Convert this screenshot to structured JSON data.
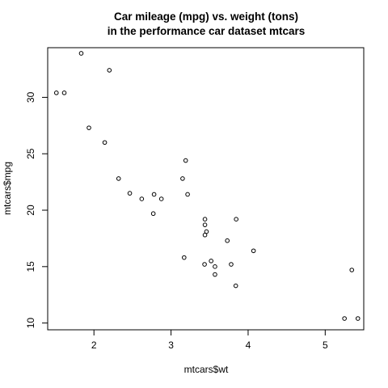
{
  "chart_data": {
    "type": "scatter",
    "title": "Car mileage (mpg) vs. weight (tons)",
    "subtitle": "in the performance car dataset mtcars",
    "xlabel": "mtcars$wt",
    "ylabel": "mtcars$mpg",
    "xlim": [
      1.4,
      5.5
    ],
    "ylim": [
      9.4,
      34.4
    ],
    "x_ticks": [
      2,
      3,
      4,
      5
    ],
    "y_ticks": [
      10,
      15,
      20,
      25,
      30
    ],
    "grid": false,
    "legend": "none",
    "marker": "open-circle",
    "point_color": "#000000",
    "points": [
      {
        "x": 2.62,
        "y": 21.0
      },
      {
        "x": 2.875,
        "y": 21.0
      },
      {
        "x": 2.32,
        "y": 22.8
      },
      {
        "x": 3.215,
        "y": 21.4
      },
      {
        "x": 3.44,
        "y": 18.7
      },
      {
        "x": 3.46,
        "y": 18.1
      },
      {
        "x": 3.57,
        "y": 14.3
      },
      {
        "x": 3.19,
        "y": 24.4
      },
      {
        "x": 3.15,
        "y": 22.8
      },
      {
        "x": 3.44,
        "y": 19.2
      },
      {
        "x": 3.44,
        "y": 17.8
      },
      {
        "x": 4.07,
        "y": 16.4
      },
      {
        "x": 3.73,
        "y": 17.3
      },
      {
        "x": 3.78,
        "y": 15.2
      },
      {
        "x": 5.25,
        "y": 10.4
      },
      {
        "x": 5.424,
        "y": 10.4
      },
      {
        "x": 5.345,
        "y": 14.7
      },
      {
        "x": 2.2,
        "y": 32.4
      },
      {
        "x": 1.615,
        "y": 30.4
      },
      {
        "x": 1.835,
        "y": 33.9
      },
      {
        "x": 2.465,
        "y": 21.5
      },
      {
        "x": 3.52,
        "y": 15.5
      },
      {
        "x": 3.435,
        "y": 15.2
      },
      {
        "x": 3.84,
        "y": 13.3
      },
      {
        "x": 3.845,
        "y": 19.2
      },
      {
        "x": 1.935,
        "y": 27.3
      },
      {
        "x": 2.14,
        "y": 26.0
      },
      {
        "x": 1.513,
        "y": 30.4
      },
      {
        "x": 3.17,
        "y": 15.8
      },
      {
        "x": 2.77,
        "y": 19.7
      },
      {
        "x": 3.57,
        "y": 15.0
      },
      {
        "x": 2.78,
        "y": 21.4
      }
    ]
  }
}
